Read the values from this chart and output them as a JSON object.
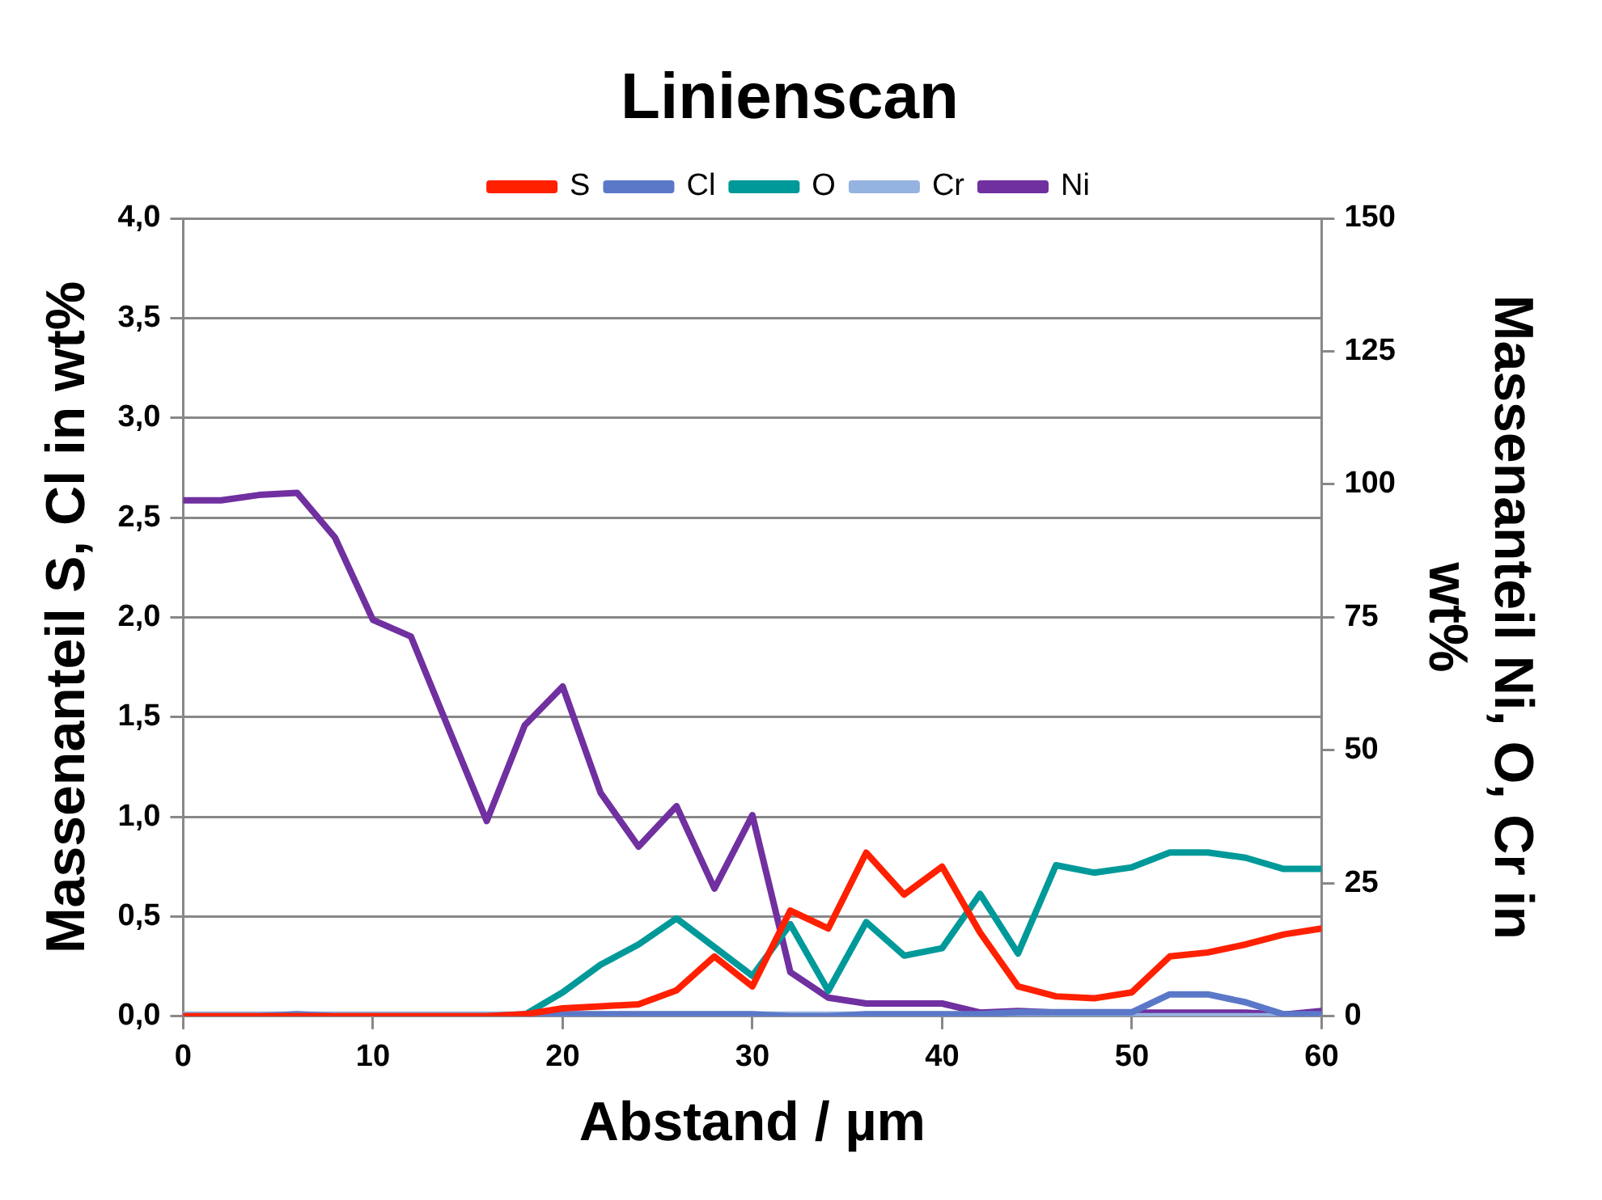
{
  "chart_data": {
    "type": "line",
    "title": "Linienscan",
    "xlabel": "Abstand / µm",
    "ylabel": "Massenanteil S, Cl in wt%",
    "y2label": "Massenanteil Ni, O, Cr in wt%",
    "x": [
      0,
      2,
      4,
      6,
      8,
      10,
      12,
      14,
      16,
      18,
      20,
      22,
      24,
      26,
      28,
      30,
      32,
      34,
      36,
      38,
      40,
      42,
      44,
      46,
      48,
      50,
      52,
      54,
      56,
      58,
      60
    ],
    "series": [
      {
        "name": "S",
        "color": "#ff2000",
        "axis": "y",
        "values": [
          0,
          0,
          0,
          0,
          0,
          0,
          0,
          0,
          0,
          0.01,
          0.04,
          0.05,
          0.06,
          0.13,
          0.3,
          0.15,
          0.53,
          0.44,
          0.82,
          0.61,
          0.75,
          0.42,
          0.15,
          0.1,
          0.09,
          0.12,
          0.3,
          0.32,
          0.36,
          0.41,
          0.44
        ]
      },
      {
        "name": "Cl",
        "color": "#5b78c8",
        "axis": "y",
        "values": [
          0,
          0,
          0,
          0.01,
          0,
          0,
          0,
          0,
          0,
          0.01,
          0.01,
          0.01,
          0.01,
          0.01,
          0.01,
          0.01,
          0,
          0,
          0.01,
          0.01,
          0.01,
          0.01,
          0.02,
          0.02,
          0.02,
          0.02,
          0.11,
          0.11,
          0.07,
          0.01,
          0.01
        ]
      },
      {
        "name": "O",
        "color": "#009999",
        "axis": "y2",
        "values": [
          null,
          null,
          null,
          null,
          null,
          null,
          null,
          null,
          null,
          0.3,
          4.5,
          9.7,
          13.5,
          18.4,
          13,
          7.6,
          17.3,
          4.8,
          17.7,
          11.4,
          12.8,
          23,
          11.8,
          28.4,
          27,
          28,
          30.8,
          30.8,
          29.8,
          27.7,
          27.7
        ]
      },
      {
        "name": "Cr",
        "color": "#95b3e0",
        "axis": "y2",
        "values": [
          0.3,
          0.3,
          0.3,
          0.3,
          0.3,
          0.3,
          0.3,
          0.3,
          0.3,
          0.3,
          0.3,
          0.3,
          0.3,
          0.3,
          0.3,
          0.3,
          0.3,
          0.3,
          0.3,
          0.3,
          0.3,
          0,
          0,
          0,
          0,
          0,
          0,
          0,
          0,
          0,
          0
        ]
      },
      {
        "name": "Ni",
        "color": "#7030a0",
        "axis": "y2",
        "values": [
          97,
          97,
          98,
          98.4,
          90,
          74.5,
          71.4,
          54,
          36.7,
          54.7,
          62,
          42,
          31.9,
          39.5,
          24,
          37.8,
          8.3,
          3.5,
          2.4,
          2.4,
          2.4,
          0.7,
          1,
          0.7,
          0.7,
          0.7,
          0.7,
          0.7,
          0.7,
          0.3,
          1
        ]
      }
    ],
    "xlim": [
      0,
      60
    ],
    "xticks": [
      0,
      10,
      20,
      30,
      40,
      50,
      60
    ],
    "ylim": [
      0,
      4
    ],
    "yticks": [
      {
        "value": 0,
        "label": "0,0"
      },
      {
        "value": 0.5,
        "label": "0,5"
      },
      {
        "value": 1,
        "label": "1,0"
      },
      {
        "value": 1.5,
        "label": "1,5"
      },
      {
        "value": 2,
        "label": "2,0"
      },
      {
        "value": 2.5,
        "label": "2,5"
      },
      {
        "value": 3,
        "label": "3,0"
      },
      {
        "value": 3.5,
        "label": "3,5"
      },
      {
        "value": 4,
        "label": "4,0"
      }
    ],
    "y2lim": [
      0,
      150
    ],
    "y2ticks": [
      0,
      25,
      50,
      75,
      100,
      125,
      150
    ],
    "grid": "y",
    "legend": "top",
    "marker": "none",
    "line_style": "solid"
  }
}
